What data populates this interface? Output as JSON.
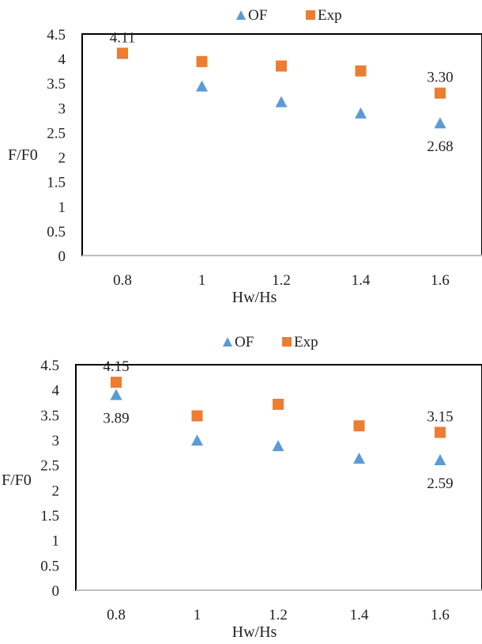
{
  "colors": {
    "of": "#5B9BD5",
    "exp": "#ED7D31",
    "frame": "#000000",
    "axis": "#bfbfbf"
  },
  "chart_data": [
    {
      "type": "scatter",
      "xlabel": "Hw/Hs",
      "ylabel": "F/F0",
      "x_ticks": [
        "0.8",
        "1",
        "1.2",
        "1.4",
        "1.6"
      ],
      "y_ticks": [
        "0",
        "0.5",
        "1",
        "1.5",
        "2",
        "2.5",
        "3",
        "3.5",
        "4",
        "4.5"
      ],
      "xlim": [
        0.7,
        1.7
      ],
      "ylim": [
        0,
        4.5
      ],
      "legend": "top-center",
      "grid": false,
      "series": [
        {
          "name": "OF",
          "marker": "triangle",
          "x": [
            0.8,
            1.0,
            1.2,
            1.4,
            1.6
          ],
          "y": [
            4.09,
            3.43,
            3.11,
            2.88,
            2.68
          ]
        },
        {
          "name": "Exp",
          "marker": "square",
          "x": [
            0.8,
            1.0,
            1.2,
            1.4,
            1.6
          ],
          "y": [
            4.11,
            3.94,
            3.85,
            3.75,
            3.3
          ]
        }
      ],
      "annotations": [
        {
          "text": "4.11",
          "series": "Exp",
          "point": 0,
          "position": "above"
        },
        {
          "text": "3.30",
          "series": "Exp",
          "point": 4,
          "position": "above"
        },
        {
          "text": "2.68",
          "series": "OF",
          "point": 4,
          "position": "below"
        }
      ]
    },
    {
      "type": "scatter",
      "xlabel": "Hw/Hs",
      "ylabel": "F/F0",
      "x_ticks": [
        "0.8",
        "1",
        "1.2",
        "1.4",
        "1.6"
      ],
      "y_ticks": [
        "0",
        "0.5",
        "1",
        "1.5",
        "2",
        "2.5",
        "3",
        "3.5",
        "4",
        "4.5"
      ],
      "xlim": [
        0.7,
        1.7
      ],
      "ylim": [
        0,
        4.5
      ],
      "legend": "top-center",
      "grid": false,
      "series": [
        {
          "name": "OF",
          "marker": "triangle",
          "x": [
            0.8,
            1.0,
            1.2,
            1.4,
            1.6
          ],
          "y": [
            3.89,
            2.98,
            2.87,
            2.62,
            2.59
          ]
        },
        {
          "name": "Exp",
          "marker": "square",
          "x": [
            0.8,
            1.0,
            1.2,
            1.4,
            1.6
          ],
          "y": [
            4.15,
            3.48,
            3.71,
            3.28,
            3.15
          ]
        }
      ],
      "annotations": [
        {
          "text": "4.15",
          "series": "Exp",
          "point": 0,
          "position": "above"
        },
        {
          "text": "3.89",
          "series": "OF",
          "point": 0,
          "position": "below"
        },
        {
          "text": "3.15",
          "series": "Exp",
          "point": 4,
          "position": "above"
        },
        {
          "text": "2.59",
          "series": "OF",
          "point": 4,
          "position": "below"
        }
      ]
    }
  ]
}
